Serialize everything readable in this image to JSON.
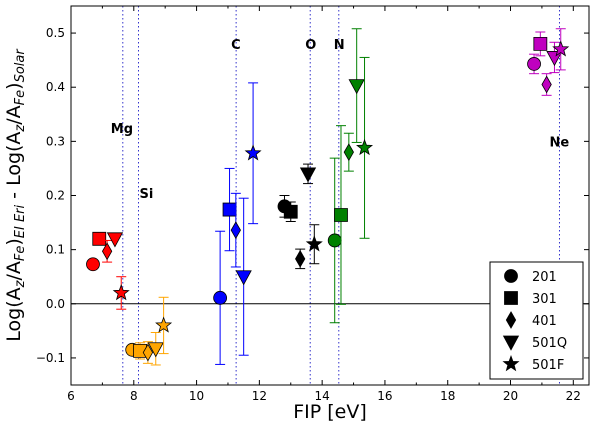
{
  "chart_data": {
    "type": "scatter",
    "xlabel": "FIP [eV]",
    "ylabel": "Log(A_z/A_Fe)_EI Eri - Log(A_z/A_Fe)_Solar",
    "ylabel_parts": {
      "p1": "Log(A",
      "s1": "z",
      "p2": "/A",
      "s2": "Fe",
      "p3": ")",
      "s3": "EI Eri",
      "p4": " - Log(A",
      "s4": "z",
      "p5": "/A",
      "s5": "Fe",
      "p6": ")",
      "s6": "Solar"
    },
    "xlim": [
      6,
      22.5
    ],
    "ylim": [
      -0.15,
      0.55
    ],
    "xticks": [
      6,
      8,
      10,
      12,
      14,
      16,
      18,
      20,
      22
    ],
    "yticks": [
      -0.1,
      0.0,
      0.1,
      0.2,
      0.3,
      0.4,
      0.5
    ],
    "ytick_labels": [
      "−0.1",
      "0.0",
      "0.1",
      "0.2",
      "0.3",
      "0.4",
      "0.5"
    ],
    "zero_line": 0.0,
    "element_lines": [
      {
        "element": "Mg",
        "fip": 7.65,
        "label_y": 0.325
      },
      {
        "element": "Si",
        "fip": 8.15,
        "label_y": 0.205
      },
      {
        "element": "C",
        "fip": 11.26,
        "label_y": 0.48
      },
      {
        "element": "O",
        "fip": 13.62,
        "label_y": 0.48
      },
      {
        "element": "N",
        "fip": 14.53,
        "label_y": 0.48
      },
      {
        "element": "Ne",
        "fip": 21.56,
        "label_y": 0.3
      }
    ],
    "colors": {
      "Mg": "#ff0000",
      "Si": "#ffa500",
      "C": "#0000ff",
      "O": "#000000",
      "N": "#008000",
      "Ne": "#bf00bf"
    },
    "legend": {
      "position": "bottom-right",
      "entries": [
        {
          "label": "201",
          "marker": "circle"
        },
        {
          "label": "301",
          "marker": "square"
        },
        {
          "label": "401",
          "marker": "diamond"
        },
        {
          "label": "501Q",
          "marker": "triangle-down"
        },
        {
          "label": "501F",
          "marker": "star"
        }
      ]
    },
    "series": [
      {
        "name": "201",
        "marker": "circle",
        "points": [
          {
            "element": "Mg",
            "x": 6.7,
            "y": 0.073,
            "err": 0
          },
          {
            "element": "Si",
            "x": 7.95,
            "y": -0.085,
            "err": 0
          },
          {
            "element": "C",
            "x": 10.75,
            "y": 0.011,
            "err": 0.123
          },
          {
            "element": "O",
            "x": 12.8,
            "y": 0.18,
            "err": 0.02
          },
          {
            "element": "N",
            "x": 14.4,
            "y": 0.117,
            "err": 0.152
          },
          {
            "element": "Ne",
            "x": 20.75,
            "y": 0.443,
            "err": 0.018
          }
        ]
      },
      {
        "name": "301",
        "marker": "square",
        "points": [
          {
            "element": "Mg",
            "x": 6.9,
            "y": 0.12,
            "err": 0
          },
          {
            "element": "Si",
            "x": 8.2,
            "y": -0.087,
            "err": 0.015
          },
          {
            "element": "C",
            "x": 11.05,
            "y": 0.174,
            "err": 0.076
          },
          {
            "element": "O",
            "x": 13.0,
            "y": 0.17,
            "err": 0.018
          },
          {
            "element": "N",
            "x": 14.6,
            "y": 0.164,
            "err": 0.165
          },
          {
            "element": "Ne",
            "x": 20.95,
            "y": 0.48,
            "err": 0.022
          }
        ]
      },
      {
        "name": "401",
        "marker": "diamond",
        "points": [
          {
            "element": "Mg",
            "x": 7.15,
            "y": 0.097,
            "err": 0.02
          },
          {
            "element": "Si",
            "x": 8.45,
            "y": -0.09,
            "err": 0.02
          },
          {
            "element": "C",
            "x": 11.25,
            "y": 0.136,
            "err": 0.068
          },
          {
            "element": "O",
            "x": 13.3,
            "y": 0.083,
            "err": 0.018
          },
          {
            "element": "N",
            "x": 14.85,
            "y": 0.28,
            "err": 0.035
          },
          {
            "element": "Ne",
            "x": 21.15,
            "y": 0.405,
            "err": 0.02
          }
        ]
      },
      {
        "name": "501Q",
        "marker": "triangle-down",
        "points": [
          {
            "element": "Mg",
            "x": 7.4,
            "y": 0.12,
            "err": 0
          },
          {
            "element": "Si",
            "x": 8.7,
            "y": -0.083,
            "err": 0.03
          },
          {
            "element": "C",
            "x": 11.5,
            "y": 0.05,
            "err": 0.145
          },
          {
            "element": "O",
            "x": 13.55,
            "y": 0.24,
            "err": 0.018
          },
          {
            "element": "N",
            "x": 15.1,
            "y": 0.403,
            "err": 0.105
          },
          {
            "element": "Ne",
            "x": 21.4,
            "y": 0.455,
            "err": 0.028
          }
        ]
      },
      {
        "name": "501F",
        "marker": "star",
        "points": [
          {
            "element": "Mg",
            "x": 7.6,
            "y": 0.02,
            "err": 0.03
          },
          {
            "element": "Si",
            "x": 8.95,
            "y": -0.04,
            "err": 0.052
          },
          {
            "element": "C",
            "x": 11.8,
            "y": 0.278,
            "err": 0.13
          },
          {
            "element": "O",
            "x": 13.75,
            "y": 0.11,
            "err": 0.036
          },
          {
            "element": "N",
            "x": 15.35,
            "y": 0.288,
            "err": 0.167
          },
          {
            "element": "Ne",
            "x": 21.6,
            "y": 0.47,
            "err": 0.038
          }
        ]
      }
    ]
  }
}
